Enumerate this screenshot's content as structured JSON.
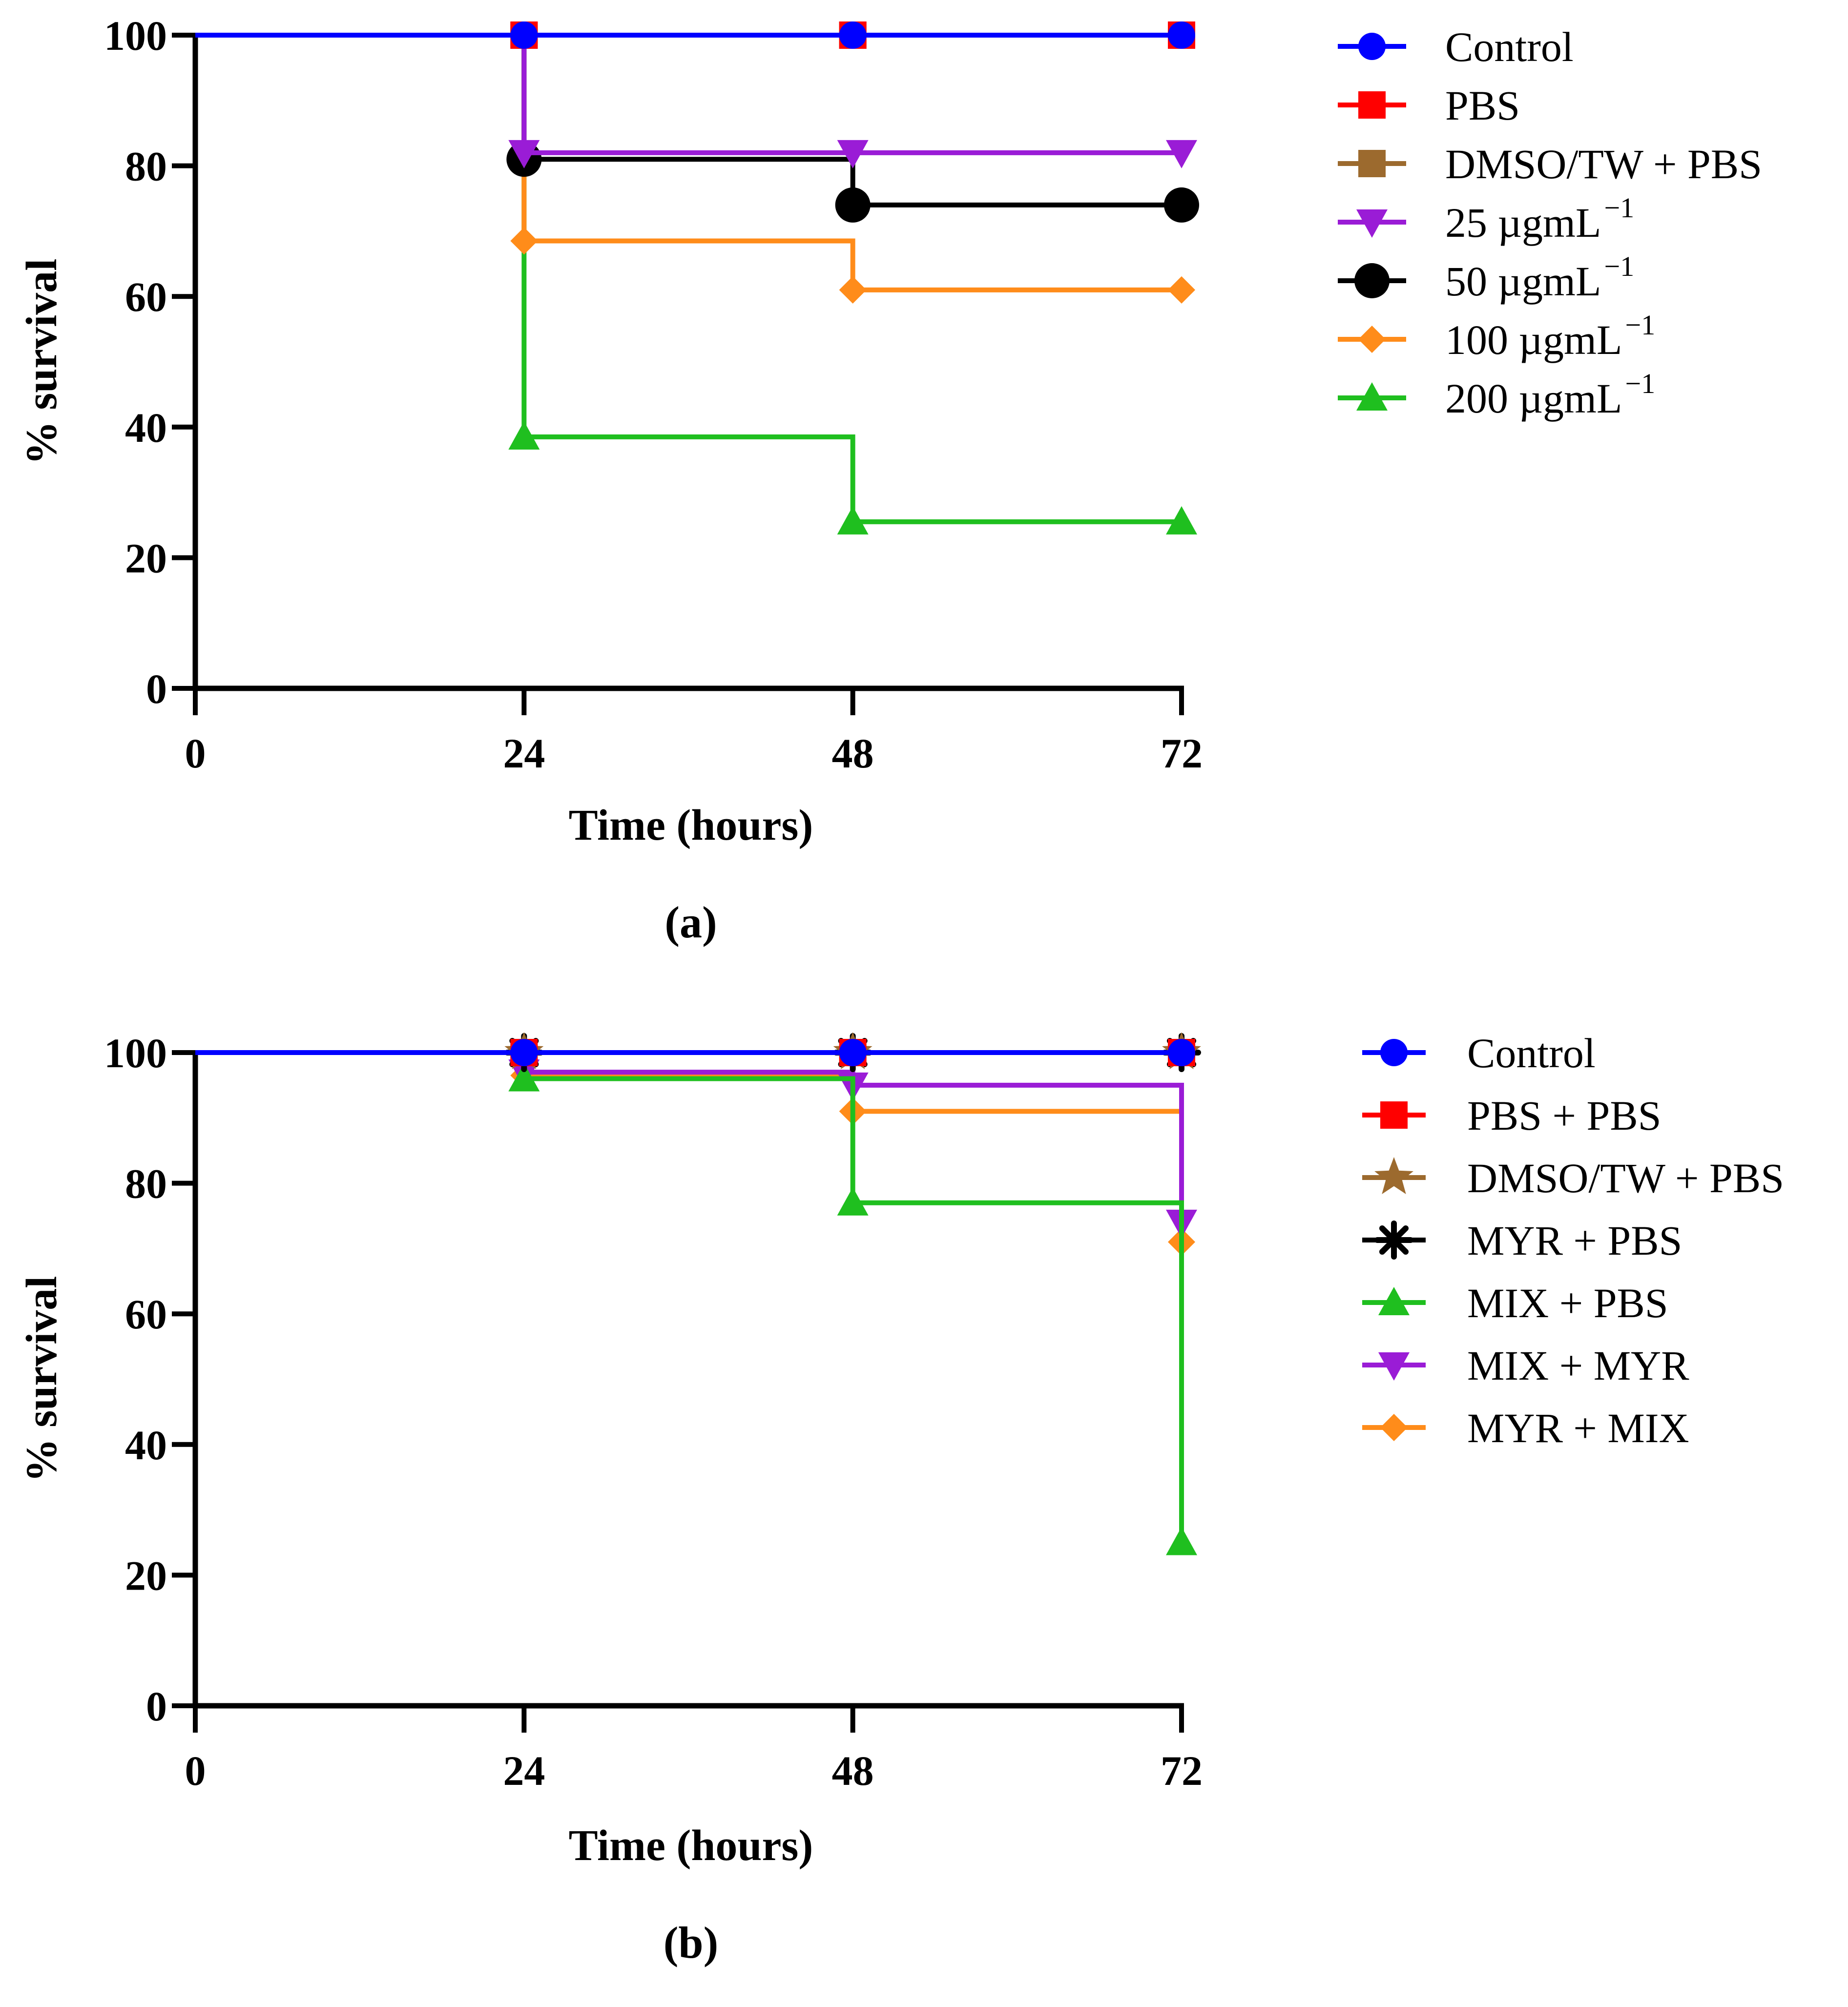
{
  "chart_data": [
    {
      "type": "line",
      "step": true,
      "panel_label": "(a)",
      "title": "",
      "xlabel": "Time (hours)",
      "ylabel": "% survival",
      "xlim": [
        0,
        72
      ],
      "ylim": [
        0,
        100
      ],
      "xticks": [
        "0",
        "24",
        "48",
        "72"
      ],
      "yticks": [
        "0",
        "20",
        "40",
        "60",
        "80",
        "100"
      ],
      "grid": false,
      "legend_position": "right",
      "x": [
        0,
        24,
        48,
        72
      ],
      "series": [
        {
          "name": "Control",
          "label_main": "Control",
          "label_sup": "",
          "color": "#0000ff",
          "marker": "circle",
          "values": [
            100,
            100,
            100,
            100
          ]
        },
        {
          "name": "PBS",
          "label_main": "PBS",
          "label_sup": "",
          "color": "#ff0000",
          "marker": "square",
          "values": [
            100,
            100,
            100,
            100
          ]
        },
        {
          "name": "DMSO/TW + PBS",
          "label_main": "DMSO/TW + PBS",
          "label_sup": "",
          "color": "#9c6a2e",
          "marker": "square",
          "values": [
            100,
            100,
            100,
            100
          ]
        },
        {
          "name": "25 µgmL−1",
          "label_main": "25 µgmL",
          "label_sup": "−1",
          "color": "#9a1cd6",
          "marker": "triangle-down",
          "values": [
            100,
            82,
            82,
            82
          ]
        },
        {
          "name": "50 µgmL−1",
          "label_main": "50 µgmL",
          "label_sup": "−1",
          "color": "#000000",
          "marker": "circle-large",
          "values": [
            100,
            81,
            74,
            74
          ]
        },
        {
          "name": "100 µgmL−1",
          "label_main": "100 µgmL",
          "label_sup": "−1",
          "color": "#ff8c1a",
          "marker": "diamond",
          "values": [
            100,
            68.5,
            61,
            61
          ]
        },
        {
          "name": "200 µgmL−1",
          "label_main": "200 µgmL",
          "label_sup": "−1",
          "color": "#1fbf1f",
          "marker": "triangle-up",
          "values": [
            100,
            38.5,
            25.5,
            25.5
          ]
        }
      ]
    },
    {
      "type": "line",
      "step": true,
      "panel_label": "(b)",
      "title": "",
      "xlabel": "Time (hours)",
      "ylabel": "% survival",
      "xlim": [
        0,
        72
      ],
      "ylim": [
        0,
        100
      ],
      "xticks": [
        "0",
        "24",
        "48",
        "72"
      ],
      "yticks": [
        "0",
        "20",
        "40",
        "60",
        "80",
        "100"
      ],
      "grid": false,
      "legend_position": "right",
      "x": [
        0,
        24,
        48,
        72
      ],
      "series": [
        {
          "name": "Control",
          "label_main": "Control",
          "label_sup": "",
          "color": "#0000ff",
          "marker": "circle",
          "values": [
            100,
            100,
            100,
            100
          ]
        },
        {
          "name": "PBS + PBS",
          "label_main": "PBS + PBS",
          "label_sup": "",
          "color": "#ff0000",
          "marker": "square",
          "values": [
            100,
            100,
            100,
            100
          ]
        },
        {
          "name": "DMSO/TW + PBS",
          "label_main": "DMSO/TW + PBS",
          "label_sup": "",
          "color": "#9c6a2e",
          "marker": "star",
          "values": [
            100,
            100,
            100,
            100
          ]
        },
        {
          "name": "MYR + PBS",
          "label_main": "MYR + PBS",
          "label_sup": "",
          "color": "#000000",
          "marker": "asterisk",
          "values": [
            100,
            100,
            100,
            100
          ]
        },
        {
          "name": "MIX + PBS",
          "label_main": "MIX + PBS",
          "label_sup": "",
          "color": "#1fbf1f",
          "marker": "triangle-up",
          "values": [
            100,
            96,
            77,
            25
          ]
        },
        {
          "name": "MIX + MYR",
          "label_main": "MIX + MYR",
          "label_sup": "",
          "color": "#9a1cd6",
          "marker": "triangle-down",
          "values": [
            100,
            97,
            95,
            74
          ]
        },
        {
          "name": "MYR + MIX",
          "label_main": "MYR + MIX",
          "label_sup": "",
          "color": "#ff8c1a",
          "marker": "diamond",
          "values": [
            100,
            96.5,
            91,
            71
          ]
        }
      ]
    }
  ]
}
